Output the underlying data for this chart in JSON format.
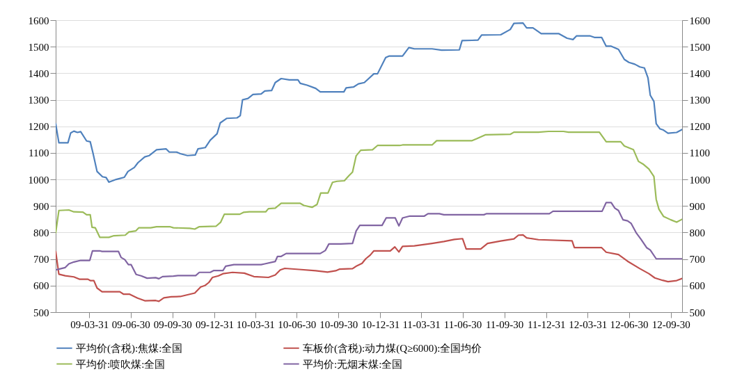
{
  "chart_data": {
    "type": "line",
    "xlim": [
      "2009-01-16",
      "2012-10-25"
    ],
    "xticks": [
      {
        "value": "2009-03-31",
        "label": "09-03-31"
      },
      {
        "value": "2009-06-30",
        "label": "09-06-30"
      },
      {
        "value": "2009-09-30",
        "label": "09-09-30"
      },
      {
        "value": "2009-12-31",
        "label": "09-12-31"
      },
      {
        "value": "2010-03-31",
        "label": "10-03-31"
      },
      {
        "value": "2010-06-30",
        "label": "10-06-30"
      },
      {
        "value": "2010-09-30",
        "label": "10-09-30"
      },
      {
        "value": "2010-12-31",
        "label": "10-12-31"
      },
      {
        "value": "2011-03-31",
        "label": "11-03-31"
      },
      {
        "value": "2011-06-30",
        "label": "11-06-30"
      },
      {
        "value": "2011-09-30",
        "label": "11-09-30"
      },
      {
        "value": "2011-12-31",
        "label": "11-12-31"
      },
      {
        "value": "2012-03-31",
        "label": "12-03-31"
      },
      {
        "value": "2012-06-30",
        "label": "12-06-30"
      },
      {
        "value": "2012-09-30",
        "label": "12-09-30"
      }
    ],
    "ylim": [
      500,
      1600
    ],
    "yticks": [
      500,
      600,
      700,
      800,
      900,
      1000,
      1100,
      1200,
      1300,
      1400,
      1500,
      1600
    ],
    "y2lim": [
      500,
      1600
    ],
    "y2ticks": [
      500,
      600,
      700,
      800,
      900,
      1000,
      1100,
      1200,
      1300,
      1400,
      1500,
      1600
    ],
    "grid": "y",
    "legend": "bottom",
    "marker": "none",
    "line_style": "solid",
    "series": [
      {
        "name": "平均价(含税):焦煤:全国",
        "color": "#4f81bd",
        "x": [
          "2009-01-16",
          "2009-01-23",
          "2009-02-12",
          "2009-02-18",
          "2009-02-25",
          "2009-03-05",
          "2009-03-12",
          "2009-03-25",
          "2009-04-02",
          "2009-04-08",
          "2009-04-17",
          "2009-04-29",
          "2009-05-07",
          "2009-05-13",
          "2009-05-29",
          "2009-06-16",
          "2009-06-24",
          "2009-07-08",
          "2009-07-16",
          "2009-07-31",
          "2009-08-10",
          "2009-08-26",
          "2009-09-16",
          "2009-09-23",
          "2009-10-09",
          "2009-10-17",
          "2009-11-02",
          "2009-11-19",
          "2009-11-25",
          "2009-12-11",
          "2009-12-22",
          "2010-01-06",
          "2010-01-13",
          "2010-01-27",
          "2010-02-19",
          "2010-02-26",
          "2010-03-03",
          "2010-03-15",
          "2010-03-26",
          "2010-04-13",
          "2010-04-21",
          "2010-05-06",
          "2010-05-14",
          "2010-05-27",
          "2010-06-14",
          "2010-07-03",
          "2010-07-08",
          "2010-07-23",
          "2010-08-11",
          "2010-08-21",
          "2010-10-12",
          "2010-10-17",
          "2010-11-02",
          "2010-11-13",
          "2010-11-26",
          "2010-12-17",
          "2010-12-25",
          "2011-01-12",
          "2011-01-20",
          "2011-02-18",
          "2011-03-04",
          "2011-03-16",
          "2011-04-24",
          "2011-05-15",
          "2011-06-23",
          "2011-06-29",
          "2011-07-21",
          "2011-08-03",
          "2011-08-11",
          "2011-09-22",
          "2011-10-13",
          "2011-10-21",
          "2011-11-10",
          "2011-11-18",
          "2011-12-02",
          "2011-12-20",
          "2012-01-28",
          "2012-02-15",
          "2012-02-28",
          "2012-03-07",
          "2012-04-05",
          "2012-04-15",
          "2012-05-01",
          "2012-05-11",
          "2012-05-22",
          "2012-06-07",
          "2012-06-20",
          "2012-06-30",
          "2012-07-13",
          "2012-07-24",
          "2012-08-03",
          "2012-08-11",
          "2012-08-16",
          "2012-08-24",
          "2012-08-29",
          "2012-09-06",
          "2012-09-14",
          "2012-09-24",
          "2012-10-13",
          "2012-10-25"
        ],
        "values": [
          1210,
          1138,
          1138,
          1175,
          1182,
          1177,
          1180,
          1145,
          1142,
          1100,
          1030,
          1010,
          1007,
          990,
          1000,
          1008,
          1030,
          1045,
          1063,
          1085,
          1090,
          1112,
          1115,
          1103,
          1103,
          1097,
          1090,
          1092,
          1115,
          1120,
          1148,
          1172,
          1213,
          1230,
          1232,
          1240,
          1300,
          1305,
          1320,
          1322,
          1333,
          1335,
          1365,
          1380,
          1375,
          1375,
          1362,
          1355,
          1343,
          1330,
          1330,
          1345,
          1348,
          1360,
          1365,
          1398,
          1398,
          1459,
          1465,
          1465,
          1497,
          1492,
          1492,
          1487,
          1488,
          1523,
          1524,
          1525,
          1544,
          1545,
          1565,
          1588,
          1589,
          1571,
          1571,
          1549,
          1549,
          1532,
          1527,
          1541,
          1541,
          1535,
          1535,
          1502,
          1502,
          1490,
          1452,
          1441,
          1434,
          1424,
          1420,
          1382,
          1317,
          1294,
          1210,
          1191,
          1186,
          1174,
          1177,
          1188
        ]
      },
      {
        "name": "车板价(含税):动力煤(Q≥6000):全国均价",
        "color": "#c0504d",
        "x": [
          "2009-01-16",
          "2009-01-23",
          "2009-02-06",
          "2009-02-25",
          "2009-03-10",
          "2009-03-28",
          "2009-04-02",
          "2009-04-10",
          "2009-04-17",
          "2009-04-28",
          "2009-06-06",
          "2009-06-14",
          "2009-06-27",
          "2009-07-15",
          "2009-07-31",
          "2009-08-24",
          "2009-08-31",
          "2009-09-11",
          "2009-09-27",
          "2009-10-17",
          "2009-11-18",
          "2009-12-01",
          "2009-12-11",
          "2009-12-19",
          "2009-12-27",
          "2010-01-09",
          "2010-01-19",
          "2010-02-09",
          "2010-03-07",
          "2010-03-28",
          "2010-04-29",
          "2010-05-14",
          "2010-05-25",
          "2010-06-04",
          "2010-07-05",
          "2010-08-11",
          "2010-09-06",
          "2010-09-24",
          "2010-10-02",
          "2010-10-31",
          "2010-11-10",
          "2010-11-21",
          "2010-11-29",
          "2010-12-09",
          "2010-12-17",
          "2010-12-25",
          "2011-01-22",
          "2011-02-01",
          "2011-02-10",
          "2011-02-18",
          "2011-03-16",
          "2011-04-24",
          "2011-05-20",
          "2011-06-12",
          "2011-06-30",
          "2011-07-08",
          "2011-08-09",
          "2011-08-24",
          "2011-09-22",
          "2011-10-21",
          "2011-10-31",
          "2011-11-10",
          "2011-11-18",
          "2011-12-14",
          "2012-02-26",
          "2012-03-02",
          "2012-05-01",
          "2012-05-11",
          "2012-06-07",
          "2012-06-27",
          "2012-07-24",
          "2012-08-13",
          "2012-08-26",
          "2012-09-12",
          "2012-09-24",
          "2012-10-13",
          "2012-10-25"
        ],
        "values": [
          729,
          643,
          637,
          633,
          624,
          624,
          619,
          619,
          591,
          577,
          577,
          568,
          568,
          553,
          543,
          544,
          541,
          554,
          558,
          559,
          572,
          595,
          601,
          612,
          631,
          637,
          645,
          650,
          647,
          634,
          631,
          640,
          659,
          665,
          661,
          656,
          651,
          656,
          662,
          664,
          675,
          684,
          701,
          715,
          731,
          731,
          731,
          746,
          727,
          748,
          750,
          759,
          766,
          774,
          777,
          738,
          738,
          759,
          768,
          776,
          790,
          791,
          780,
          773,
          769,
          743,
          743,
          726,
          717,
          692,
          664,
          645,
          629,
          620,
          615,
          619,
          627
        ]
      },
      {
        "name": "平均价:喷吹煤:全国",
        "color": "#9bbb59",
        "x": [
          "2009-01-16",
          "2009-01-23",
          "2009-02-14",
          "2009-02-25",
          "2009-03-17",
          "2009-03-25",
          "2009-04-02",
          "2009-04-06",
          "2009-04-13",
          "2009-04-23",
          "2009-05-13",
          "2009-05-24",
          "2009-06-18",
          "2009-06-26",
          "2009-07-11",
          "2009-07-18",
          "2009-08-13",
          "2009-08-26",
          "2009-09-24",
          "2009-10-02",
          "2009-11-07",
          "2009-11-18",
          "2009-11-28",
          "2010-01-04",
          "2010-01-14",
          "2010-01-22",
          "2010-02-25",
          "2010-03-05",
          "2010-03-18",
          "2010-04-23",
          "2010-04-29",
          "2010-05-14",
          "2010-05-27",
          "2010-07-08",
          "2010-07-16",
          "2010-08-03",
          "2010-08-14",
          "2010-08-22",
          "2010-09-07",
          "2010-09-17",
          "2010-09-27",
          "2010-10-13",
          "2010-10-23",
          "2010-10-31",
          "2010-11-08",
          "2010-11-18",
          "2010-12-14",
          "2010-12-25",
          "2011-02-12",
          "2011-02-18",
          "2011-04-24",
          "2011-05-04",
          "2011-07-21",
          "2011-08-01",
          "2011-08-19",
          "2011-10-13",
          "2011-10-21",
          "2011-12-14",
          "2012-01-05",
          "2012-02-07",
          "2012-02-18",
          "2012-04-26",
          "2012-05-11",
          "2012-06-12",
          "2012-06-20",
          "2012-07-10",
          "2012-07-21",
          "2012-07-31",
          "2012-08-13",
          "2012-08-24",
          "2012-08-29",
          "2012-09-04",
          "2012-09-14",
          "2012-09-30",
          "2012-10-13",
          "2012-10-25"
        ],
        "values": [
          799,
          883,
          885,
          878,
          877,
          867,
          867,
          820,
          818,
          782,
          782,
          788,
          790,
          802,
          806,
          818,
          818,
          822,
          822,
          818,
          816,
          813,
          822,
          824,
          839,
          869,
          869,
          876,
          878,
          878,
          890,
          892,
          910,
          910,
          902,
          895,
          906,
          949,
          949,
          989,
          993,
          995,
          1014,
          1028,
          1089,
          1110,
          1112,
          1128,
          1128,
          1130,
          1130,
          1146,
          1146,
          1154,
          1168,
          1170,
          1178,
          1178,
          1181,
          1181,
          1178,
          1178,
          1142,
          1142,
          1126,
          1112,
          1068,
          1058,
          1039,
          1011,
          925,
          888,
          861,
          848,
          839,
          850
        ]
      },
      {
        "name": "平均价:无烟末煤:全国",
        "color": "#8064a2",
        "x": [
          "2009-01-16",
          "2009-01-23",
          "2009-02-06",
          "2009-02-14",
          "2009-02-25",
          "2009-03-12",
          "2009-04-01",
          "2009-04-07",
          "2009-04-23",
          "2009-04-28",
          "2009-06-03",
          "2009-06-09",
          "2009-06-17",
          "2009-06-25",
          "2009-07-01",
          "2009-07-12",
          "2009-07-23",
          "2009-08-05",
          "2009-08-24",
          "2009-08-31",
          "2009-09-08",
          "2009-10-02",
          "2009-10-12",
          "2009-11-20",
          "2009-11-28",
          "2009-12-22",
          "2009-12-30",
          "2010-01-19",
          "2010-01-25",
          "2010-02-12",
          "2010-04-13",
          "2010-04-21",
          "2010-05-14",
          "2010-05-19",
          "2010-05-27",
          "2010-06-07",
          "2010-08-21",
          "2010-09-01",
          "2010-09-09",
          "2010-10-05",
          "2010-10-31",
          "2010-11-08",
          "2010-11-16",
          "2011-01-04",
          "2011-01-13",
          "2011-02-02",
          "2011-02-10",
          "2011-02-18",
          "2011-03-06",
          "2011-04-07",
          "2011-04-15",
          "2011-05-10",
          "2011-05-20",
          "2011-08-16",
          "2011-08-22",
          "2012-01-07",
          "2012-01-15",
          "2012-05-02",
          "2012-05-11",
          "2012-05-22",
          "2012-05-30",
          "2012-06-07",
          "2012-06-17",
          "2012-06-27",
          "2012-07-05",
          "2012-07-16",
          "2012-07-26",
          "2012-08-08",
          "2012-08-16",
          "2012-08-29",
          "2012-10-25"
        ],
        "values": [
          659,
          662,
          668,
          682,
          689,
          695,
          695,
          731,
          731,
          729,
          729,
          706,
          698,
          679,
          679,
          642,
          637,
          628,
          630,
          626,
          634,
          636,
          638,
          638,
          650,
          650,
          657,
          657,
          673,
          679,
          679,
          682,
          691,
          710,
          710,
          721,
          721,
          732,
          757,
          757,
          759,
          806,
          827,
          827,
          855,
          855,
          825,
          855,
          862,
          862,
          871,
          871,
          867,
          867,
          871,
          871,
          880,
          880,
          913,
          913,
          892,
          883,
          848,
          844,
          834,
          799,
          776,
          743,
          734,
          701,
          701
        ]
      }
    ]
  }
}
